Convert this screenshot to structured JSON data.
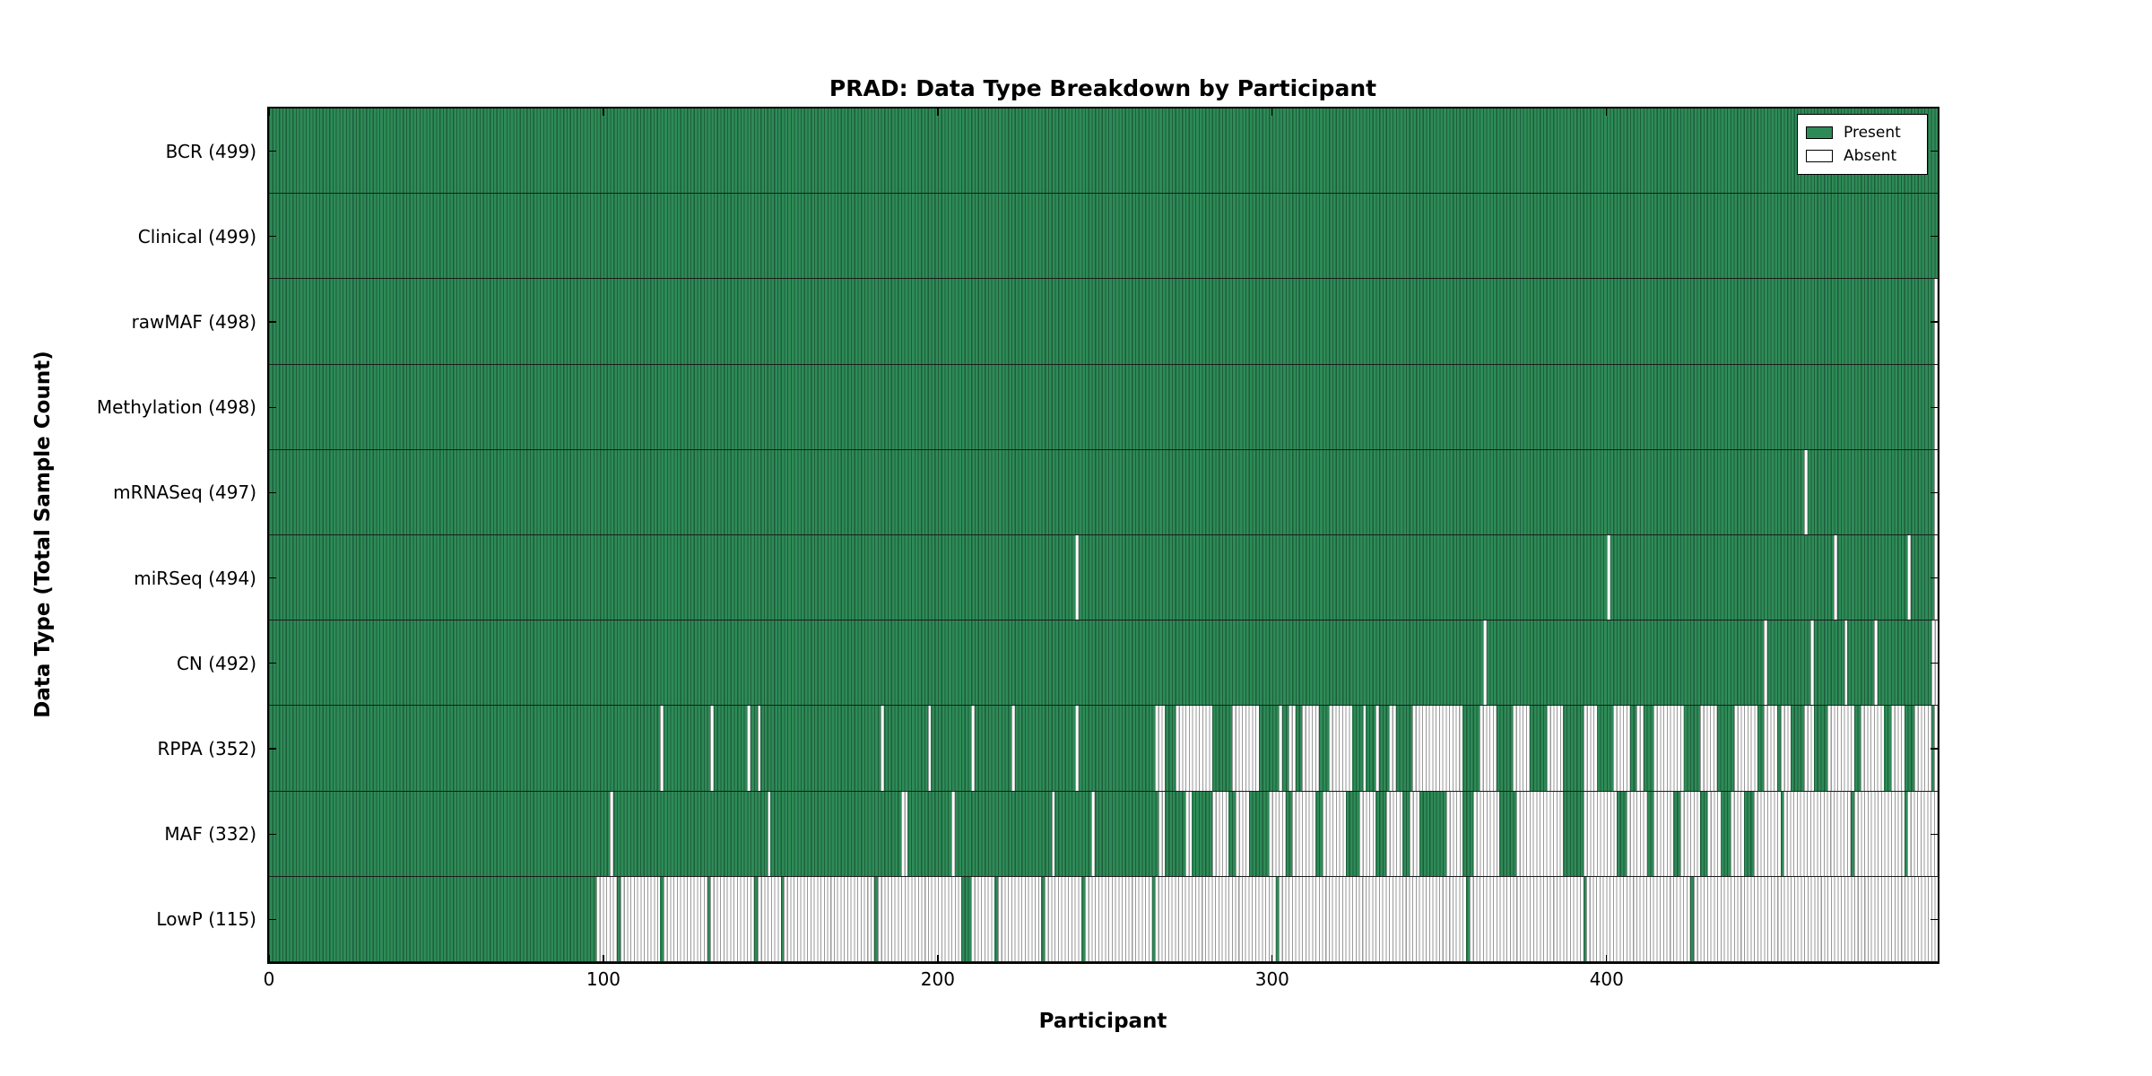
{
  "chart_data": {
    "type": "heatmap",
    "title": "PRAD: Data Type Breakdown by Participant",
    "xlabel": "Participant",
    "ylabel": "Data Type (Total Sample Count)",
    "x_ticks": [
      0,
      100,
      200,
      300,
      400
    ],
    "x_range": [
      0,
      499
    ],
    "n_participants": 499,
    "grid": false,
    "legend_position": "upper right",
    "legend": [
      {
        "label": "Present",
        "color": "#2e8b57"
      },
      {
        "label": "Absent",
        "color": "#ffffff"
      }
    ],
    "colors": {
      "present_fill": "#2e8b57",
      "present_edge": "#1d5e3b",
      "absent_fill": "#ffffff",
      "absent_edge": "#999999",
      "row_separator": "#1c1c1c",
      "axis_border": "#000000"
    },
    "rows": [
      {
        "label": "BCR (499)",
        "count": 499,
        "absent_runs": []
      },
      {
        "label": "Clinical (499)",
        "count": 499,
        "absent_runs": []
      },
      {
        "label": "rawMAF (498)",
        "count": 498,
        "absent_runs": [
          [
            498,
            499
          ]
        ]
      },
      {
        "label": "Methylation (498)",
        "count": 498,
        "absent_runs": [
          [
            498,
            499
          ]
        ]
      },
      {
        "label": "mRNASeq (497)",
        "count": 497,
        "absent_runs": [
          [
            459,
            460
          ],
          [
            498,
            499
          ]
        ]
      },
      {
        "label": "miRSeq (494)",
        "count": 494,
        "absent_runs": [
          [
            241,
            242
          ],
          [
            400,
            401
          ],
          [
            468,
            469
          ],
          [
            490,
            491
          ],
          [
            498,
            499
          ]
        ]
      },
      {
        "label": "CN (492)",
        "count": 492,
        "absent_runs": [
          [
            363,
            364
          ],
          [
            447,
            448
          ],
          [
            461,
            462
          ],
          [
            471,
            472
          ],
          [
            480,
            481
          ],
          [
            497,
            499
          ]
        ]
      },
      {
        "label": "RPPA (352)",
        "count": 352,
        "absent_runs": [
          [
            117,
            118
          ],
          [
            132,
            133
          ],
          [
            143,
            144
          ],
          [
            146,
            147
          ],
          [
            183,
            184
          ],
          [
            197,
            198
          ],
          [
            210,
            211
          ],
          [
            222,
            223
          ],
          [
            241,
            242
          ],
          [
            265,
            268
          ],
          [
            271,
            282
          ],
          [
            288,
            296
          ],
          [
            302,
            303
          ],
          [
            305,
            307
          ],
          [
            309,
            314
          ],
          [
            317,
            324
          ],
          [
            327,
            328
          ],
          [
            331,
            332
          ],
          [
            335,
            337
          ],
          [
            342,
            357
          ],
          [
            362,
            367
          ],
          [
            372,
            377
          ],
          [
            382,
            387
          ],
          [
            393,
            397
          ],
          [
            402,
            407
          ],
          [
            409,
            411
          ],
          [
            414,
            423
          ],
          [
            428,
            433
          ],
          [
            438,
            445
          ],
          [
            447,
            451
          ],
          [
            452,
            455
          ],
          [
            459,
            462
          ],
          [
            466,
            474
          ],
          [
            476,
            483
          ],
          [
            485,
            489
          ],
          [
            492,
            497
          ],
          [
            498,
            499
          ]
        ]
      },
      {
        "label": "MAF (332)",
        "count": 332,
        "absent_runs": [
          [
            102,
            103
          ],
          [
            149,
            150
          ],
          [
            189,
            191
          ],
          [
            204,
            205
          ],
          [
            234,
            235
          ],
          [
            246,
            247
          ],
          [
            266,
            268
          ],
          [
            274,
            276
          ],
          [
            282,
            287
          ],
          [
            289,
            293
          ],
          [
            299,
            304
          ],
          [
            306,
            313
          ],
          [
            315,
            322
          ],
          [
            326,
            331
          ],
          [
            334,
            339
          ],
          [
            341,
            344
          ],
          [
            352,
            357
          ],
          [
            360,
            368
          ],
          [
            373,
            387
          ],
          [
            393,
            403
          ],
          [
            406,
            412
          ],
          [
            414,
            420
          ],
          [
            422,
            428
          ],
          [
            430,
            434
          ],
          [
            437,
            441
          ],
          [
            444,
            452
          ],
          [
            453,
            473
          ],
          [
            474,
            489
          ],
          [
            490,
            499
          ]
        ]
      },
      {
        "label": "LowP (115)",
        "count": 115,
        "absent_runs": [
          [
            98,
            104
          ],
          [
            105,
            117
          ],
          [
            118,
            131
          ],
          [
            132,
            145
          ],
          [
            146,
            153
          ],
          [
            154,
            181
          ],
          [
            182,
            207
          ],
          [
            210,
            217
          ],
          [
            218,
            231
          ],
          [
            232,
            243
          ],
          [
            244,
            264
          ],
          [
            265,
            301
          ],
          [
            302,
            358
          ],
          [
            359,
            393
          ],
          [
            394,
            425
          ],
          [
            426,
            499
          ]
        ]
      }
    ]
  }
}
